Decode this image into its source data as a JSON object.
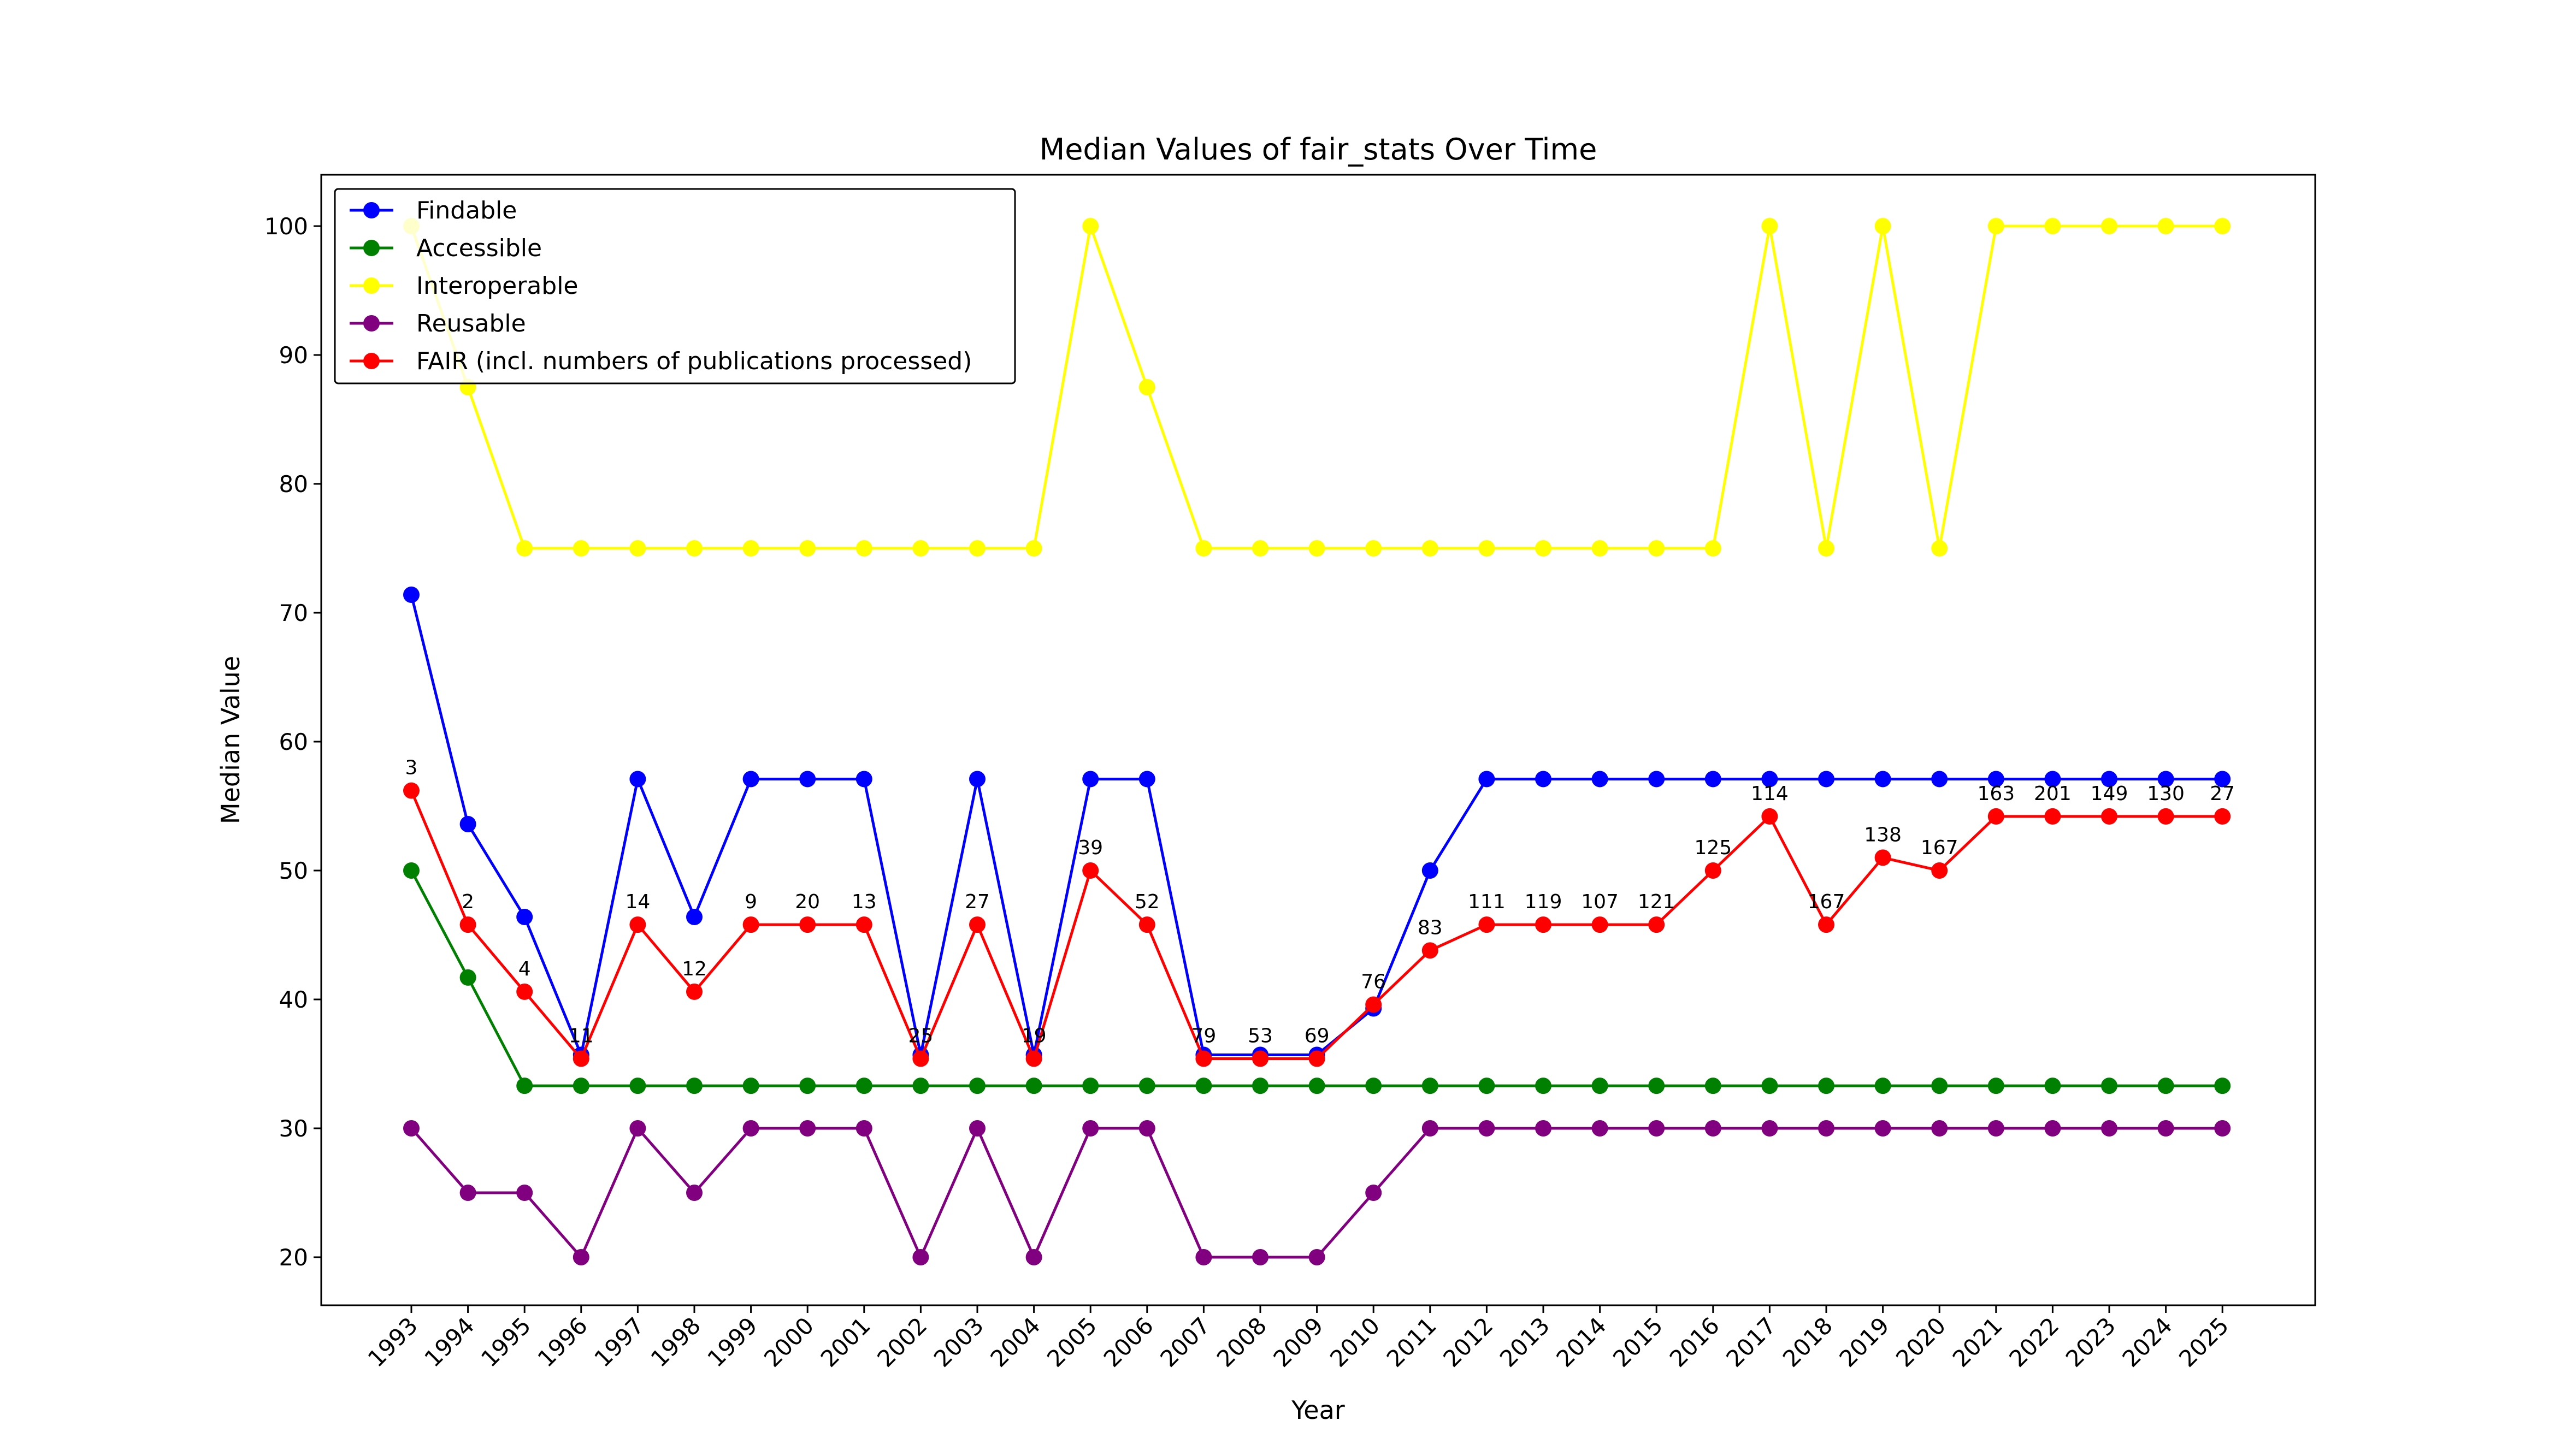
{
  "chart_data": {
    "type": "line",
    "title": "Median Values of fair_stats Over Time",
    "xlabel": "Year",
    "ylabel": "Median Value",
    "ylim": [
      16,
      104
    ],
    "yticks": [
      20,
      30,
      40,
      50,
      60,
      70,
      80,
      90,
      100
    ],
    "grid": false,
    "legend_position": "top-left",
    "categories": [
      "1993",
      "1994",
      "1995",
      "1996",
      "1997",
      "1998",
      "1999",
      "2000",
      "2001",
      "2002",
      "2003",
      "2004",
      "2005",
      "2006",
      "2007",
      "2008",
      "2009",
      "2010",
      "2011",
      "2012",
      "2013",
      "2014",
      "2015",
      "2016",
      "2017",
      "2018",
      "2019",
      "2020",
      "2021",
      "2022",
      "2023",
      "2024",
      "2025"
    ],
    "series": [
      {
        "name": "Findable",
        "color": "#0000ff",
        "values": [
          71.4,
          53.6,
          46.4,
          35.7,
          57.1,
          46.4,
          57.1,
          57.1,
          57.1,
          35.7,
          57.1,
          35.7,
          57.1,
          57.1,
          35.7,
          35.7,
          35.7,
          39.3,
          50.0,
          57.1,
          57.1,
          57.1,
          57.1,
          57.1,
          57.1,
          57.1,
          57.1,
          57.1,
          57.1,
          57.1,
          57.1,
          57.1,
          57.1
        ]
      },
      {
        "name": "Accessible",
        "color": "#008000",
        "values": [
          50.0,
          41.7,
          33.3,
          33.3,
          33.3,
          33.3,
          33.3,
          33.3,
          33.3,
          33.3,
          33.3,
          33.3,
          33.3,
          33.3,
          33.3,
          33.3,
          33.3,
          33.3,
          33.3,
          33.3,
          33.3,
          33.3,
          33.3,
          33.3,
          33.3,
          33.3,
          33.3,
          33.3,
          33.3,
          33.3,
          33.3,
          33.3,
          33.3
        ]
      },
      {
        "name": "Interoperable",
        "color": "#ffff00",
        "values": [
          100,
          87.5,
          75,
          75,
          75,
          75,
          75,
          75,
          75,
          75,
          75,
          75,
          100,
          87.5,
          75,
          75,
          75,
          75,
          75,
          75,
          75,
          75,
          75,
          75,
          100,
          75,
          100,
          75,
          100,
          100,
          100,
          100,
          100
        ]
      },
      {
        "name": "Reusable",
        "color": "#800080",
        "values": [
          30,
          25,
          25,
          20,
          30,
          25,
          30,
          30,
          30,
          20,
          30,
          20,
          30,
          30,
          20,
          20,
          20,
          25,
          30,
          30,
          30,
          30,
          30,
          30,
          30,
          30,
          30,
          30,
          30,
          30,
          30,
          30,
          30
        ]
      },
      {
        "name": "FAIR (incl. numbers of publications processed)",
        "color": "#ff0000",
        "values": [
          56.2,
          45.8,
          40.6,
          35.4,
          45.8,
          40.6,
          45.8,
          45.8,
          45.8,
          35.4,
          45.8,
          35.4,
          50.0,
          45.8,
          35.4,
          35.4,
          35.4,
          39.6,
          43.8,
          45.8,
          45.8,
          45.8,
          45.8,
          50.0,
          54.2,
          45.8,
          51.0,
          50.0,
          54.2,
          54.2,
          54.2,
          54.2,
          54.2
        ],
        "annotations": [
          "3",
          "2",
          "4",
          "11",
          "14",
          "12",
          "9",
          "20",
          "13",
          "25",
          "27",
          "19",
          "39",
          "52",
          "79",
          "53",
          "69",
          "76",
          "83",
          "111",
          "119",
          "107",
          "121",
          "125",
          "114",
          "167",
          "138",
          "167",
          "163",
          "201",
          "149",
          "130",
          "27"
        ]
      }
    ]
  }
}
